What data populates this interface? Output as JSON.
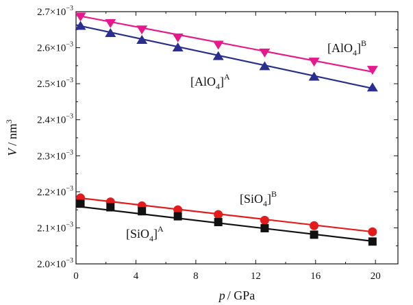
{
  "chart_data": {
    "type": "line",
    "xlabel": "p / GPa",
    "ylabel": "V / nm³",
    "xlim": [
      0,
      21.5
    ],
    "ylim": [
      0.002,
      0.0027
    ],
    "x_ticks": [
      0,
      4,
      8,
      12,
      16,
      20
    ],
    "x_tick_labels": [
      "0",
      "4",
      "8",
      "12",
      "16",
      "20"
    ],
    "y_ticks": [
      0.002,
      0.0021,
      0.0022,
      0.0023,
      0.0024,
      0.0025,
      0.0026,
      0.0027
    ],
    "y_tick_labels": [
      "2.0×10⁻³",
      "2.1×10⁻³",
      "2.2×10⁻³",
      "2.3×10⁻³",
      "2.4×10⁻³",
      "2.5×10⁻³",
      "2.6×10⁻³",
      "2.7×10⁻³"
    ],
    "grid": false,
    "series": [
      {
        "name": "[AlO4]B",
        "label_base": "[AlO",
        "label_sub": "4",
        "label_close": "]",
        "label_sup": "B",
        "marker": "triangle-down",
        "color": "#e8188c",
        "x": [
          0.3,
          2.3,
          4.4,
          6.8,
          9.5,
          12.6,
          15.9,
          19.8
        ],
        "y": [
          0.002686,
          0.002668,
          0.00265,
          0.002628,
          0.002608,
          0.002586,
          0.002561,
          0.002538
        ],
        "fit": [
          [
            0,
            0.00269
          ],
          [
            19.8,
            0.002533
          ]
        ]
      },
      {
        "name": "[AlO4]A",
        "label_base": "[AlO",
        "label_sub": "4",
        "label_close": "]",
        "label_sup": "A",
        "marker": "triangle-up",
        "color": "#2a2f8f",
        "x": [
          0.3,
          2.3,
          4.4,
          6.8,
          9.5,
          12.6,
          15.9,
          19.8
        ],
        "y": [
          0.002661,
          0.002641,
          0.002622,
          0.002601,
          0.002577,
          0.002549,
          0.00252,
          0.00249
        ],
        "fit": [
          [
            0,
            0.002663
          ],
          [
            19.8,
            0.002487
          ]
        ]
      },
      {
        "name": "[SiO4]B",
        "label_base": "[SiO",
        "label_sub": "4",
        "label_close": "]",
        "label_sup": "B",
        "marker": "circle",
        "color": "#e31b1b",
        "x": [
          0.3,
          2.3,
          4.4,
          6.8,
          9.5,
          12.6,
          15.9,
          19.8
        ],
        "y": [
          0.002183,
          0.002172,
          0.002161,
          0.00215,
          0.002137,
          0.002121,
          0.002106,
          0.002089
        ],
        "fit": [
          [
            0,
            0.002184
          ],
          [
            19.8,
            0.002089
          ]
        ]
      },
      {
        "name": "[SiO4]A",
        "label_base": "[SiO",
        "label_sub": "4",
        "label_close": "]",
        "label_sup": "A",
        "marker": "square",
        "color": "#111111",
        "x": [
          0.3,
          2.3,
          4.4,
          6.8,
          9.5,
          12.6,
          15.9,
          19.8
        ],
        "y": [
          0.002167,
          0.002157,
          0.002146,
          0.002132,
          0.002116,
          0.002099,
          0.002081,
          0.002062
        ],
        "fit": [
          [
            0,
            0.00216
          ],
          [
            19.8,
            0.002063
          ]
        ]
      }
    ]
  }
}
